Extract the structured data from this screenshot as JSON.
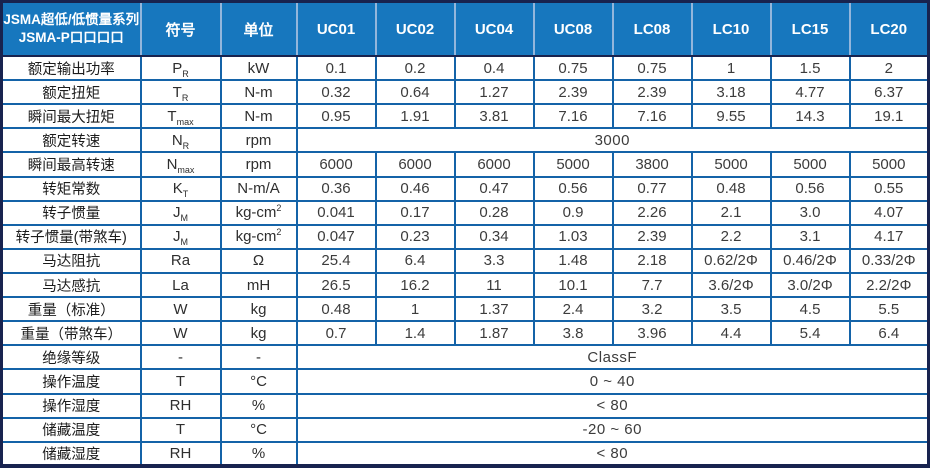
{
  "title": {
    "line1": "JSMA超低/低惯量系列",
    "line2": "JSMA-P口口口口"
  },
  "columns": {
    "symbol": "符号",
    "unit": "单位",
    "models": [
      "UC01",
      "UC02",
      "UC04",
      "UC08",
      "LC08",
      "LC10",
      "LC15",
      "LC20"
    ]
  },
  "colors": {
    "header_bg": "#1777be",
    "header_separator": "#93b6dc",
    "outer_border": "#18234f",
    "inner_border": "#1463a8",
    "value_text": "#3c3c3c"
  },
  "rows": [
    {
      "label": "额定输出功率",
      "sym": "P",
      "sub": "R",
      "unit": "kW",
      "values": [
        "0.1",
        "0.2",
        "0.4",
        "0.75",
        "0.75",
        "1",
        "1.5",
        "2"
      ]
    },
    {
      "label": "额定扭矩",
      "sym": "T",
      "sub": "R",
      "unit": "N-m",
      "values": [
        "0.32",
        "0.64",
        "1.27",
        "2.39",
        "2.39",
        "3.18",
        "4.77",
        "6.37"
      ]
    },
    {
      "label": "瞬间最大扭矩",
      "sym": "T",
      "sub": "max",
      "unit": "N-m",
      "values": [
        "0.95",
        "1.91",
        "3.81",
        "7.16",
        "7.16",
        "9.55",
        "14.3",
        "19.1"
      ]
    },
    {
      "label": "额定转速",
      "sym": "N",
      "sub": "R",
      "unit": "rpm",
      "merged": "3000"
    },
    {
      "label": "瞬间最高转速",
      "sym": "N",
      "sub": "max",
      "unit": "rpm",
      "values": [
        "6000",
        "6000",
        "6000",
        "5000",
        "3800",
        "5000",
        "5000",
        "5000"
      ]
    },
    {
      "label": "转矩常数",
      "sym": "K",
      "sub": "T",
      "unit": "N-m/A",
      "values": [
        "0.36",
        "0.46",
        "0.47",
        "0.56",
        "0.77",
        "0.48",
        "0.56",
        "0.55"
      ]
    },
    {
      "label": "转子惯量",
      "sym": "J",
      "sub": "M",
      "unit": "kg-cm",
      "unit_sup": "2",
      "values": [
        "0.041",
        "0.17",
        "0.28",
        "0.9",
        "2.26",
        "2.1",
        "3.0",
        "4.07"
      ]
    },
    {
      "label": "转子惯量(带煞车)",
      "sym": "J",
      "sub": "M",
      "unit": "kg-cm",
      "unit_sup": "2",
      "values": [
        "0.047",
        "0.23",
        "0.34",
        "1.03",
        "2.39",
        "2.2",
        "3.1",
        "4.17"
      ]
    },
    {
      "label": "马达阻抗",
      "sym": "Ra",
      "unit": "Ω",
      "values": [
        "25.4",
        "6.4",
        "3.3",
        "1.48",
        "2.18",
        "0.62/2Φ",
        "0.46/2Φ",
        "0.33/2Φ"
      ]
    },
    {
      "label": "马达感抗",
      "sym": "La",
      "unit": "mH",
      "values": [
        "26.5",
        "16.2",
        "11",
        "10.1",
        "7.7",
        "3.6/2Φ",
        "3.0/2Φ",
        "2.2/2Φ"
      ]
    },
    {
      "label": "重量（标准）",
      "sym": "W",
      "unit": "kg",
      "values": [
        "0.48",
        "1",
        "1.37",
        "2.4",
        "3.2",
        "3.5",
        "4.5",
        "5.5"
      ]
    },
    {
      "label": "重量（带煞车）",
      "sym": "W",
      "unit": "kg",
      "values": [
        "0.7",
        "1.4",
        "1.87",
        "3.8",
        "3.96",
        "4.4",
        "5.4",
        "6.4"
      ]
    },
    {
      "label": "绝缘等级",
      "sym": "-",
      "unit": "-",
      "merged": "ClassF"
    },
    {
      "label": "操作温度",
      "sym": "T",
      "unit": "°C",
      "merged": "0 ~ 40"
    },
    {
      "label": "操作湿度",
      "sym": "RH",
      "unit": "%",
      "merged": "< 80"
    },
    {
      "label": "储藏温度",
      "sym": "T",
      "unit": "°C",
      "merged": "-20 ~ 60"
    },
    {
      "label": "储藏湿度",
      "sym": "RH",
      "unit": "%",
      "merged": "< 80"
    }
  ]
}
